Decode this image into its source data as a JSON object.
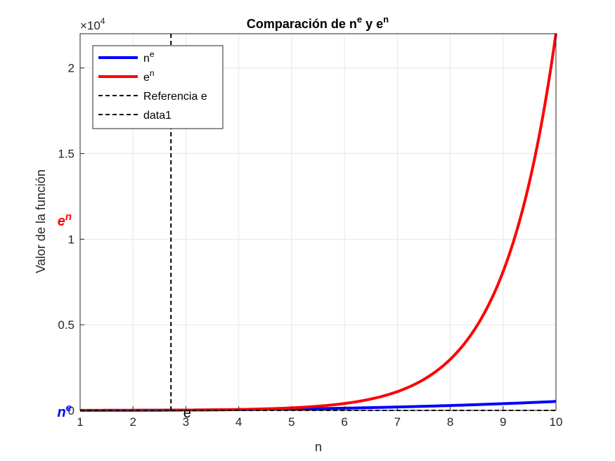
{
  "chart_data": {
    "type": "line",
    "title": "Comparación de n",
    "title_sup1": "e",
    "title_mid": " y e",
    "title_sup2": "n",
    "xlabel": "n",
    "ylabel": "Valor de la función",
    "xlim": [
      1,
      10
    ],
    "ylim": [
      0,
      22000
    ],
    "xticks": [
      1,
      2,
      3,
      4,
      5,
      6,
      7,
      8,
      9,
      10
    ],
    "yticks": [
      0,
      5000,
      10000,
      15000,
      20000
    ],
    "ytick_labels": [
      "0",
      "0.5",
      "1",
      "1.5",
      "2"
    ],
    "y_multiplier_base": "×10",
    "y_multiplier_exp": "4",
    "grid": true,
    "legend_position": "top-left",
    "series": [
      {
        "name": "n",
        "name_sup": "e",
        "color": "#0000ff",
        "style": "solid",
        "function": "n^e",
        "x_range": [
          1,
          10
        ]
      },
      {
        "name": "e",
        "name_sup": "n",
        "color": "#ff0000",
        "style": "solid",
        "function": "e^n",
        "x_range": [
          1,
          10
        ]
      },
      {
        "name": "Referencia e",
        "color": "#000000",
        "style": "dashed",
        "x": [
          2.71828,
          2.71828
        ],
        "y": [
          0,
          22000
        ]
      },
      {
        "name": "data1",
        "color": "#000000",
        "style": "dashed",
        "x": [
          1,
          10
        ],
        "y": [
          0,
          0
        ]
      }
    ],
    "annotations": [
      {
        "text": "e",
        "sup": "n",
        "color": "#ff0000",
        "style": "bold-italic",
        "at": "y-axis",
        "y": 10500
      },
      {
        "text": "n",
        "sup": "e",
        "color": "#0000ff",
        "style": "bold-italic",
        "at": "y-axis",
        "y": 0
      },
      {
        "text": "e",
        "color": "#000000",
        "style": "normal",
        "at": "x-axis",
        "x": 2.71828
      }
    ]
  }
}
